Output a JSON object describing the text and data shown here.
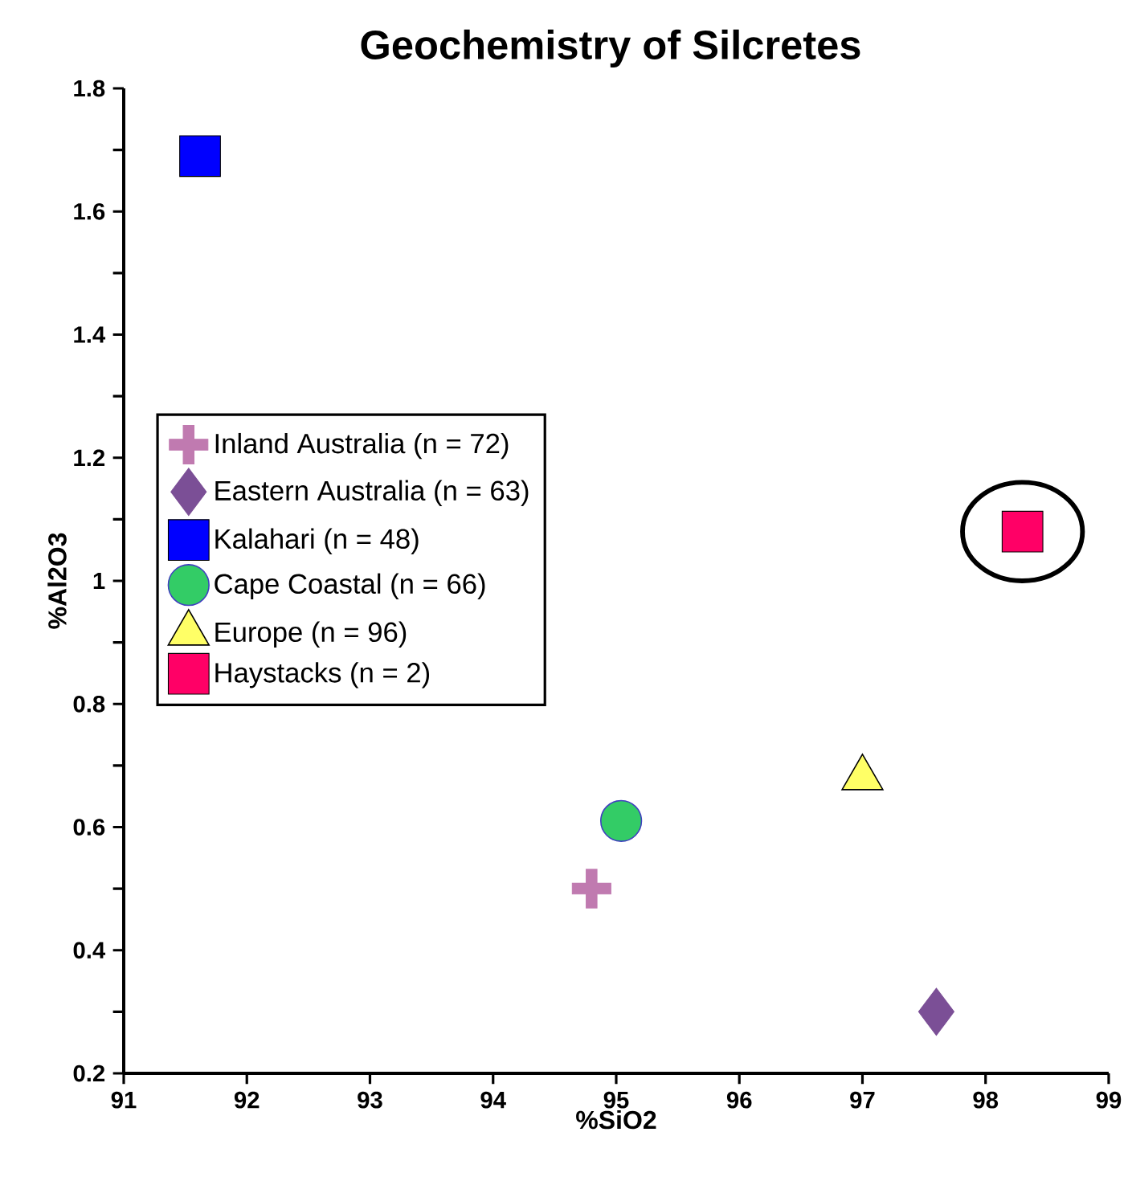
{
  "chart_data": {
    "type": "scatter",
    "title": "Geochemistry of Silcretes",
    "xlabel": "%SiO2",
    "ylabel": "%Al2O3",
    "xlim": [
      91,
      99
    ],
    "xticks": [
      91,
      92,
      93,
      94,
      95,
      96,
      97,
      98,
      99
    ],
    "ylim": [
      0.2,
      1.8
    ],
    "yticks": [
      0.2,
      {
        "value": 0.3,
        "label": null
      },
      0.4,
      {
        "value": 0.5,
        "label": null
      },
      0.6,
      {
        "value": 0.7,
        "label": null
      },
      0.8,
      {
        "value": 0.9,
        "label": null
      },
      1,
      {
        "value": 1.1,
        "label": null
      },
      1.2,
      {
        "value": 1.3,
        "label": null
      },
      1.4,
      {
        "value": 1.5,
        "label": null
      },
      1.6,
      {
        "value": 1.7,
        "label": null
      },
      1.8
    ],
    "grid": false,
    "legend": "left",
    "series": [
      {
        "name": "Inland Australia (n = 72)",
        "color": "#c07ab0",
        "marker": "cross",
        "x": [
          94.8
        ],
        "values": [
          0.5
        ]
      },
      {
        "name": "Eastern Australia (n = 63)",
        "color": "#7b4f96",
        "marker": "diamond",
        "x": [
          97.6
        ],
        "values": [
          0.3
        ]
      },
      {
        "name": "Kalahari (n = 48)",
        "color": "#0000ff",
        "marker": "square",
        "x": [
          91.62
        ],
        "values": [
          1.69
        ]
      },
      {
        "name": "Cape Coastal (n = 66)",
        "color": "#33cc66",
        "marker": "circle",
        "x": [
          95.04
        ],
        "values": [
          0.61
        ]
      },
      {
        "name": "Europe (n = 96)",
        "color": "#ffff66",
        "marker": "triangle",
        "x": [
          97.0
        ],
        "values": [
          0.68
        ]
      },
      {
        "name": "Haystacks (n = 2)",
        "color": "#ff0066",
        "marker": "square",
        "x": [
          98.3
        ],
        "values": [
          1.08
        ]
      }
    ]
  }
}
